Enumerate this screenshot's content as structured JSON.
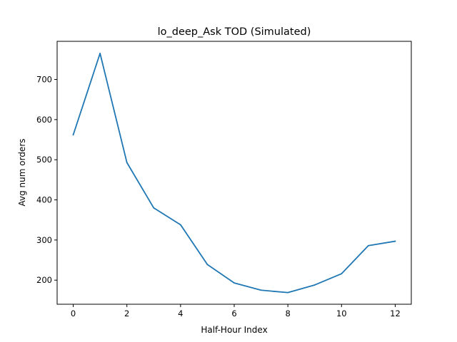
{
  "chart_data": {
    "type": "line",
    "title": "lo_deep_Ask TOD (Simulated)",
    "xlabel": "Half-Hour Index",
    "ylabel": "Avg num orders",
    "x": [
      0,
      1,
      2,
      3,
      4,
      5,
      6,
      7,
      8,
      9,
      10,
      11,
      12
    ],
    "series": [
      {
        "values": [
          562,
          765,
          493,
          380,
          338,
          239,
          193,
          175,
          169,
          188,
          216,
          286,
          297
        ],
        "color": "#1f77b4"
      }
    ],
    "xlim": [
      -0.6,
      12.6
    ],
    "ylim": [
      140,
      795
    ],
    "xticks": [
      0,
      2,
      4,
      6,
      8,
      10,
      12
    ],
    "yticks": [
      200,
      300,
      400,
      500,
      600,
      700
    ],
    "grid": false,
    "legend": "none"
  }
}
